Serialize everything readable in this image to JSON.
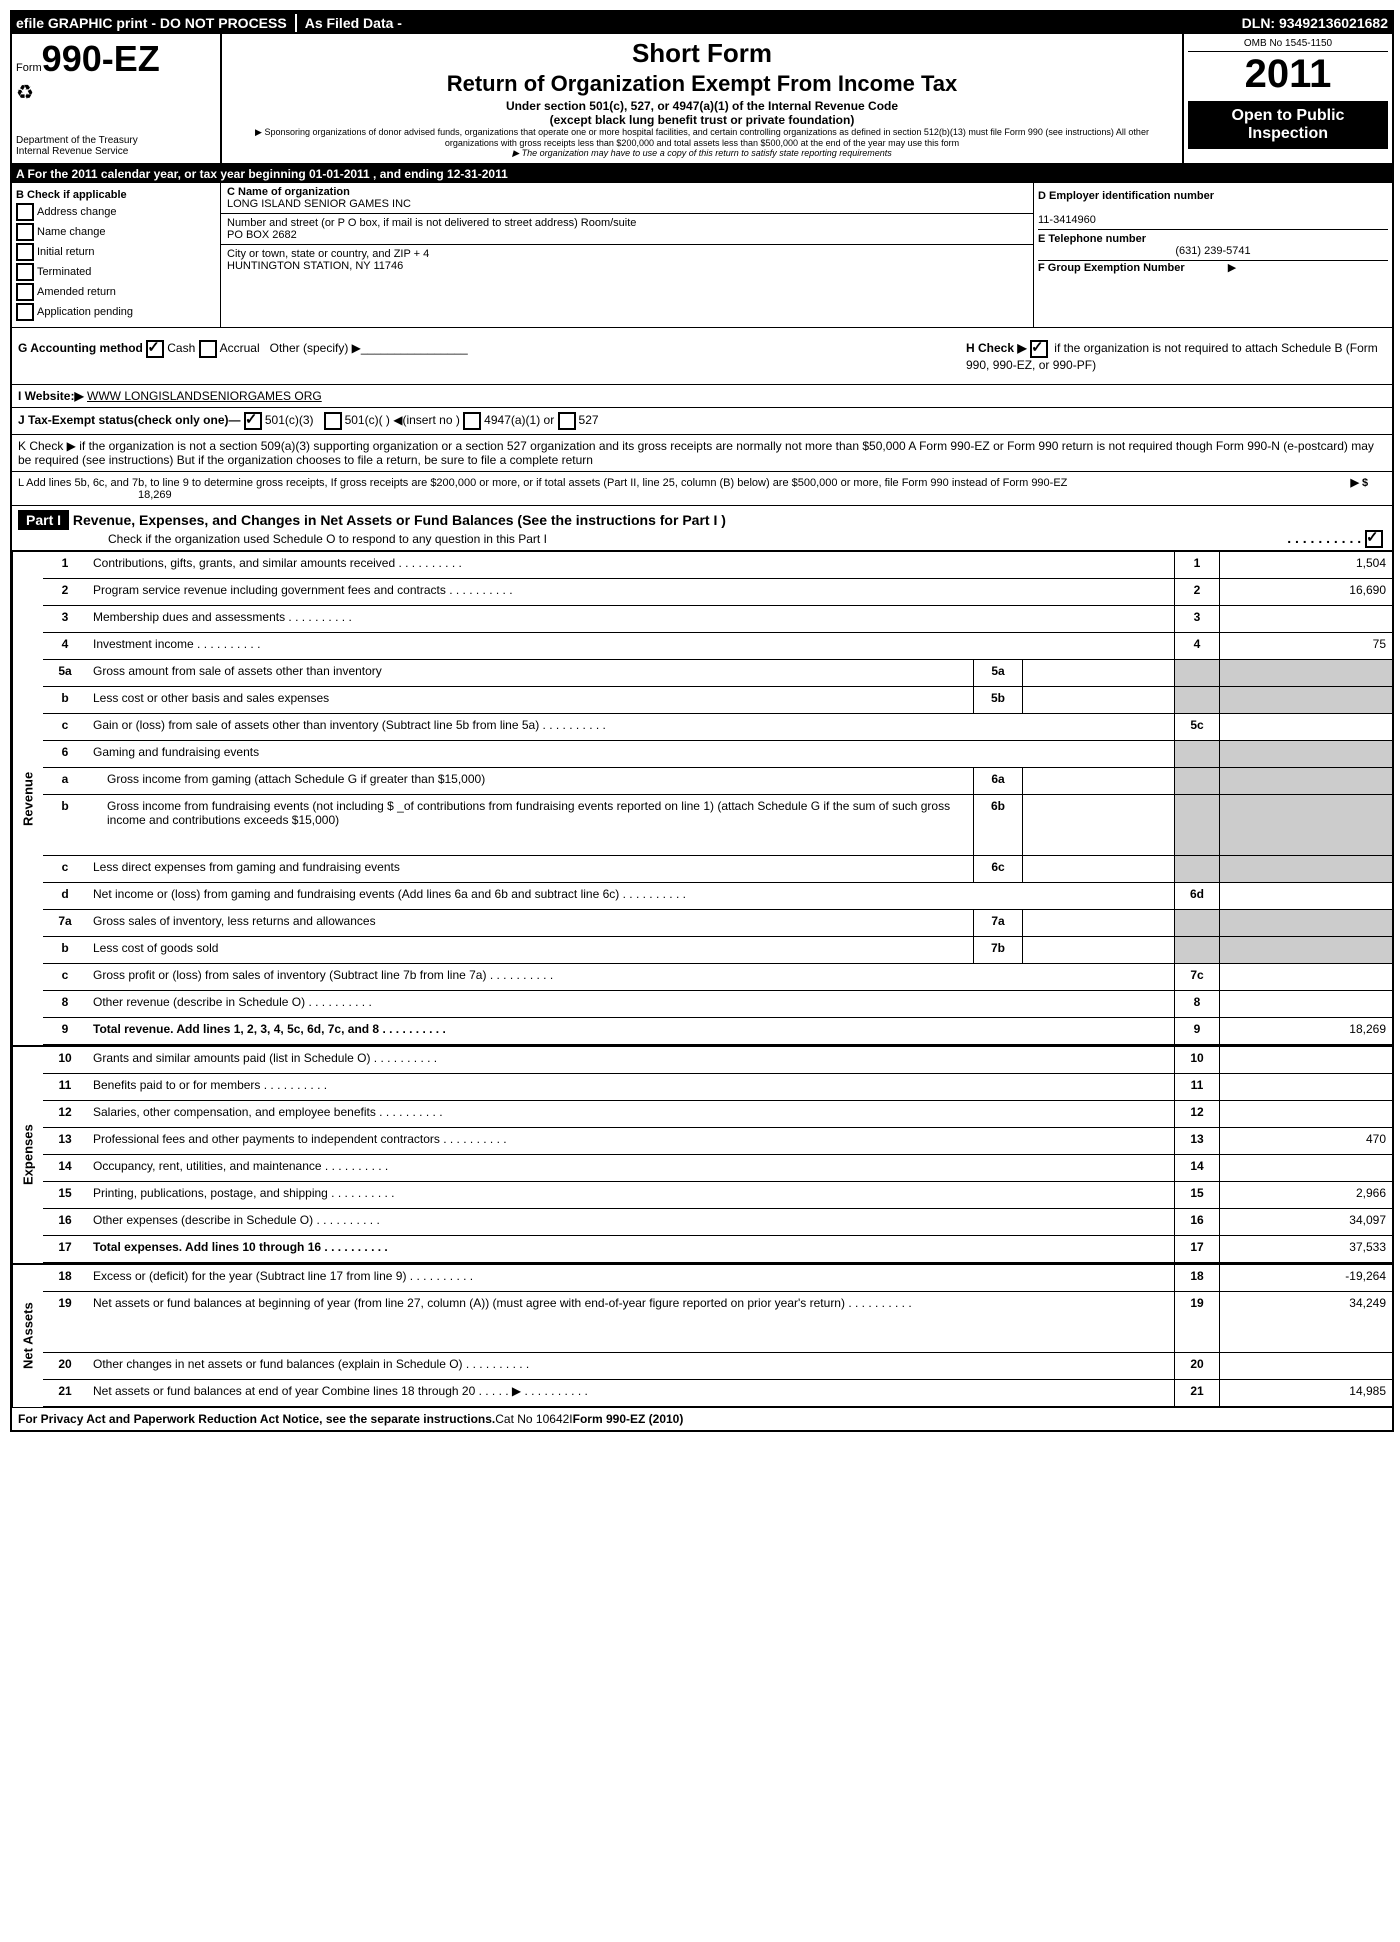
{
  "topbar": {
    "efile": "efile GRAPHIC print - DO NOT PROCESS",
    "asfiled": "As Filed Data -",
    "dln": "DLN: 93492136021682"
  },
  "header": {
    "form_prefix": "Form",
    "form_num": "990-EZ",
    "dept": "Department of the Treasury",
    "irs": "Internal Revenue Service",
    "short": "Short Form",
    "title": "Return of Organization Exempt From Income Tax",
    "sub1": "Under section 501(c), 527, or 4947(a)(1) of the Internal Revenue Code",
    "sub2": "(except black lung benefit trust or private foundation)",
    "sub3": "▶ Sponsoring organizations of donor advised funds, organizations that operate one or more hospital facilities, and certain controlling organizations as defined in section 512(b)(13) must file Form 990 (see instructions) All other organizations with gross receipts less than $200,000 and total assets less than $500,000 at the end of the year may use this form",
    "sub4": "▶ The organization may have to use a copy of this return to satisfy state reporting requirements",
    "omb": "OMB No 1545-1150",
    "year": "2011",
    "open": "Open to Public Inspection"
  },
  "line_a": "A  For the 2011 calendar year, or tax year beginning 01-01-2011               , and ending 12-31-2011",
  "col_b": {
    "title": "B  Check if applicable",
    "items": [
      "Address change",
      "Name change",
      "Initial return",
      "Terminated",
      "Amended return",
      "Application pending"
    ]
  },
  "col_c": {
    "c_label": "C Name of organization",
    "c_val": "LONG ISLAND SENIOR GAMES INC",
    "street_label": "Number and street (or P  O  box, if mail is not delivered to street address) Room/suite",
    "street_val": "PO BOX 2682",
    "city_label": "City or town, state or country, and ZIP + 4",
    "city_val": "HUNTINGTON STATION, NY  11746"
  },
  "col_d": {
    "d_label": "D Employer identification number",
    "ein": "11-3414960",
    "e_label": "E Telephone number",
    "phone": "(631) 239-5741",
    "f_label": "F Group Exemption Number",
    "f_arrow": "▶"
  },
  "g": {
    "label": "G Accounting method",
    "cash": "Cash",
    "accrual": "Accrual",
    "other": "Other (specify) ▶"
  },
  "h": {
    "text": "H   Check ▶",
    "text2": "if the organization is not required to attach Schedule B (Form 990, 990-EZ, or 990-PF)"
  },
  "i": {
    "label": "I Website:▶",
    "val": "WWW LONGISLANDSENIORGAMES ORG"
  },
  "j": {
    "label": "J Tax-Exempt status(check only one)—",
    "c3": "501(c)(3)",
    "c": "501(c)(  ) ◀(insert no )",
    "a": "4947(a)(1) or",
    "p": "527"
  },
  "k": "K Check ▶     if the organization is not a section 509(a)(3) supporting organization or a section 527 organization and its gross receipts are normally not more than   $50,000  A Form 990-EZ or Form 990 return is not required though Form 990-N (e-postcard) may be required (see instructions)  But if the  organization chooses to file a return, be sure to file a complete return",
  "l": {
    "text": "L Add lines 5b, 6c, and 7b, to line 9 to determine gross receipts, If gross receipts are $200,000 or more, or if total assets (Part II, line 25, column (B) below) are $500,000 or more,  file Form 990 instead of Form 990-EZ",
    "arrow": "▶ $",
    "val": "18,269"
  },
  "part1": {
    "header": "Part I",
    "title": "Revenue, Expenses, and Changes in Net Assets or Fund Balances (See the instructions for Part I )",
    "check": "Check if the organization used Schedule O to respond to any question in this Part I"
  },
  "vlabels": {
    "rev": "Revenue",
    "exp": "Expenses",
    "net": "Net Assets"
  },
  "lines": [
    {
      "n": "1",
      "d": "Contributions, gifts, grants, and similar amounts received",
      "r": "1",
      "v": "1,504"
    },
    {
      "n": "2",
      "d": "Program service revenue including government fees and contracts",
      "r": "2",
      "v": "16,690"
    },
    {
      "n": "3",
      "d": "Membership dues and assessments",
      "r": "3",
      "v": ""
    },
    {
      "n": "4",
      "d": "Investment income",
      "r": "4",
      "v": "75"
    },
    {
      "n": "5a",
      "d": "Gross amount from sale of assets other than inventory",
      "sub": "5a"
    },
    {
      "n": "b",
      "d": "Less  cost or other basis and sales expenses",
      "sub": "5b"
    },
    {
      "n": "c",
      "d": "Gain or (loss) from sale of assets other than inventory (Subtract line 5b from line 5a)",
      "r": "5c",
      "v": ""
    },
    {
      "n": "6",
      "d": "Gaming and fundraising events",
      "shaded": true
    },
    {
      "n": "a",
      "d": "Gross income from gaming (attach Schedule G if greater than $15,000)",
      "sub": "6a",
      "indent": true
    },
    {
      "n": "b",
      "d": "Gross income from fundraising events (not including $ _of contributions from fundraising events reported on line 1) (attach Schedule G if the sum of such gross income and contributions exceeds $15,000)",
      "sub": "6b",
      "indent": true,
      "tall": true
    },
    {
      "n": "c",
      "d": "Less  direct expenses from gaming and fundraising events",
      "sub": "6c"
    },
    {
      "n": "d",
      "d": "Net income or (loss) from gaming and fundraising events (Add lines 6a and 6b and subtract line 6c)",
      "r": "6d",
      "v": ""
    },
    {
      "n": "7a",
      "d": "Gross sales of inventory, less returns and allowances",
      "sub": "7a"
    },
    {
      "n": "b",
      "d": "Less  cost of goods sold",
      "sub": "7b"
    },
    {
      "n": "c",
      "d": "Gross profit or (loss) from sales of inventory (Subtract line 7b from line 7a)",
      "r": "7c",
      "v": ""
    },
    {
      "n": "8",
      "d": "Other revenue (describe in Schedule O)",
      "r": "8",
      "v": ""
    },
    {
      "n": "9",
      "d": "Total revenue. Add lines 1, 2, 3, 4, 5c, 6d, 7c, and 8",
      "r": "9",
      "v": "18,269",
      "bold": true
    }
  ],
  "exp_lines": [
    {
      "n": "10",
      "d": "Grants and similar amounts paid (list in Schedule O)",
      "r": "10",
      "v": ""
    },
    {
      "n": "11",
      "d": "Benefits paid to or for members",
      "r": "11",
      "v": ""
    },
    {
      "n": "12",
      "d": "Salaries, other compensation, and employee benefits",
      "r": "12",
      "v": ""
    },
    {
      "n": "13",
      "d": "Professional fees and other payments to independent contractors",
      "r": "13",
      "v": "470"
    },
    {
      "n": "14",
      "d": "Occupancy, rent, utilities, and maintenance",
      "r": "14",
      "v": ""
    },
    {
      "n": "15",
      "d": "Printing, publications, postage, and shipping",
      "r": "15",
      "v": "2,966"
    },
    {
      "n": "16",
      "d": "Other expenses (describe in Schedule O)",
      "r": "16",
      "v": "34,097"
    },
    {
      "n": "17",
      "d": "Total expenses. Add lines 10 through 16",
      "r": "17",
      "v": "37,533",
      "bold": true
    }
  ],
  "net_lines": [
    {
      "n": "18",
      "d": "Excess or (deficit) for the year (Subtract line 17 from line 9)",
      "r": "18",
      "v": "-19,264"
    },
    {
      "n": "19",
      "d": "Net assets or fund balances at beginning of year (from line 27, column (A)) (must agree with end-of-year figure reported on prior year's return)",
      "r": "19",
      "v": "34,249",
      "tall": true
    },
    {
      "n": "20",
      "d": "Other changes in net assets or fund balances (explain in Schedule O)",
      "r": "20",
      "v": ""
    },
    {
      "n": "21",
      "d": "Net assets or fund balances at end of year  Combine lines 18 through 20     .    .    .    .    . ▶",
      "r": "21",
      "v": "14,985"
    }
  ],
  "footer": {
    "left": "For Privacy Act and Paperwork Reduction Act Notice, see the separate instructions.",
    "mid": "Cat No 10642I",
    "right": "Form 990-EZ (2010)"
  }
}
